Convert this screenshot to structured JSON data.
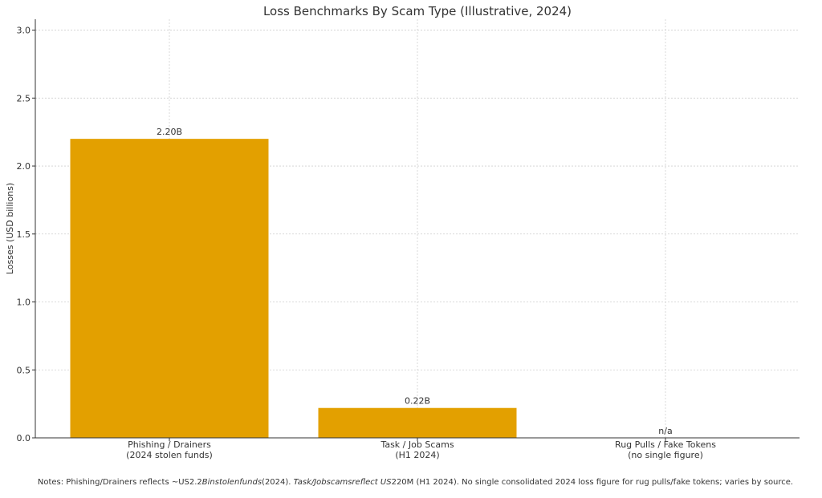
{
  "chart_data": {
    "type": "bar",
    "title": "Loss Benchmarks By Scam Type (Illustrative, 2024)",
    "ylabel": "Losses (USD billions)",
    "xlabel": "",
    "ylim": [
      0,
      3.08
    ],
    "yticks": [
      0.0,
      0.5,
      1.0,
      1.5,
      2.0,
      2.5,
      3.0
    ],
    "ytick_labels": [
      "0.0",
      "0.5",
      "1.0",
      "1.5",
      "2.0",
      "2.5",
      "3.0"
    ],
    "grid": true,
    "bar_color": "#E3A000",
    "categories": [
      {
        "line1": "Phishing / Drainers",
        "line2": "(2024 stolen funds)"
      },
      {
        "line1": "Task / Job Scams",
        "line2": "(H1 2024)"
      },
      {
        "line1": "Rug Pulls / Fake Tokens",
        "line2": "(no single figure)"
      }
    ],
    "values": [
      2.2,
      0.22,
      null
    ],
    "data_labels": [
      "2.20B",
      "0.22B",
      "n/a"
    ]
  },
  "notes": {
    "part1": "Notes: Phishing/Drainers reflects ~US2.2",
    "italic1": "Binstolenfunds",
    "part2": "(2024).",
    "italic2": "Task/Jobscamsreflect US",
    "part3": "220M (H1 2024). No single consolidated 2024 loss figure for rug pulls/fake tokens; varies by source."
  }
}
